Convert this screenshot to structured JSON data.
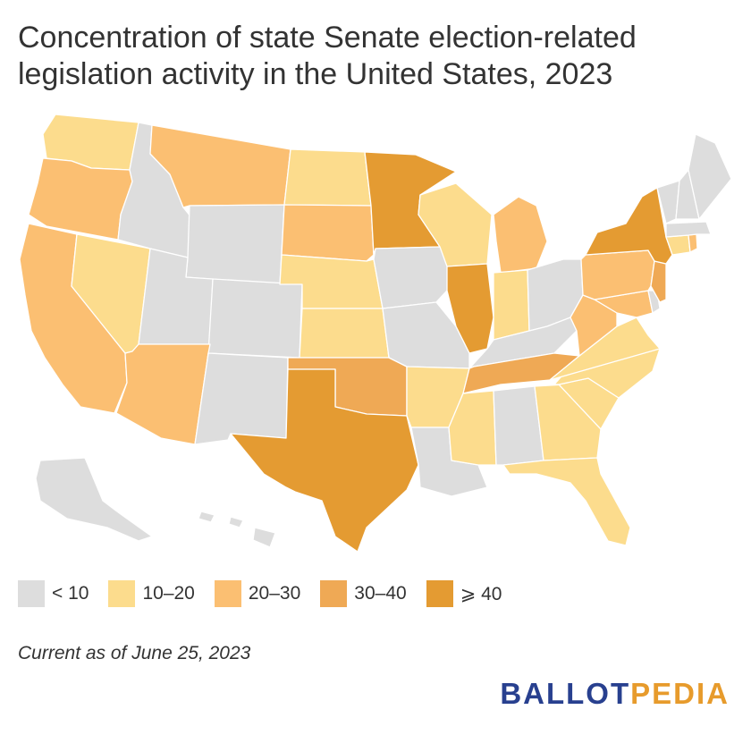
{
  "title": {
    "line1": "Concentration of state Senate election-related",
    "line2": "legislation activity in the United States, 2023"
  },
  "map": {
    "categories": [
      {
        "id": "c0",
        "label": "< 10",
        "color": "#dddddd"
      },
      {
        "id": "c1",
        "label": "10–20",
        "color": "#fcdc8d"
      },
      {
        "id": "c2",
        "label": "20–30",
        "color": "#fbbf72"
      },
      {
        "id": "c3",
        "label": "30–40",
        "color": "#efa955"
      },
      {
        "id": "c4",
        "label": "⩾ 40",
        "color": "#e49b32"
      }
    ],
    "states": {
      "WA": "c1",
      "OR": "c2",
      "CA": "c2",
      "NV": "c1",
      "ID": "c0",
      "MT": "c2",
      "WY": "c0",
      "UT": "c0",
      "CO": "c0",
      "AZ": "c2",
      "NM": "c0",
      "ND": "c1",
      "SD": "c2",
      "NE": "c1",
      "KS": "c1",
      "OK": "c3",
      "TX": "c4",
      "MN": "c4",
      "IA": "c0",
      "MO": "c0",
      "AR": "c1",
      "LA": "c0",
      "WI": "c1",
      "IL": "c4",
      "MI": "c2",
      "IN": "c1",
      "OH": "c0",
      "KY": "c0",
      "TN": "c3",
      "MS": "c1",
      "AL": "c0",
      "GA": "c1",
      "FL": "c1",
      "SC": "c1",
      "NC": "c1",
      "VA": "c1",
      "WV": "c2",
      "MD": "c2",
      "DE": "c0",
      "PA": "c2",
      "NJ": "c3",
      "NY": "c4",
      "CT": "c1",
      "RI": "c2",
      "MA": "c0",
      "VT": "c0",
      "NH": "c0",
      "ME": "c0",
      "AK": "c0",
      "HI": "c0"
    }
  },
  "legend": [
    "< 10",
    "10–20",
    "20–30",
    "30–40",
    "⩾ 40"
  ],
  "note": "Current as of June 25, 2023",
  "brand": {
    "part1": "BALLOT",
    "part2": "PEDIA"
  }
}
